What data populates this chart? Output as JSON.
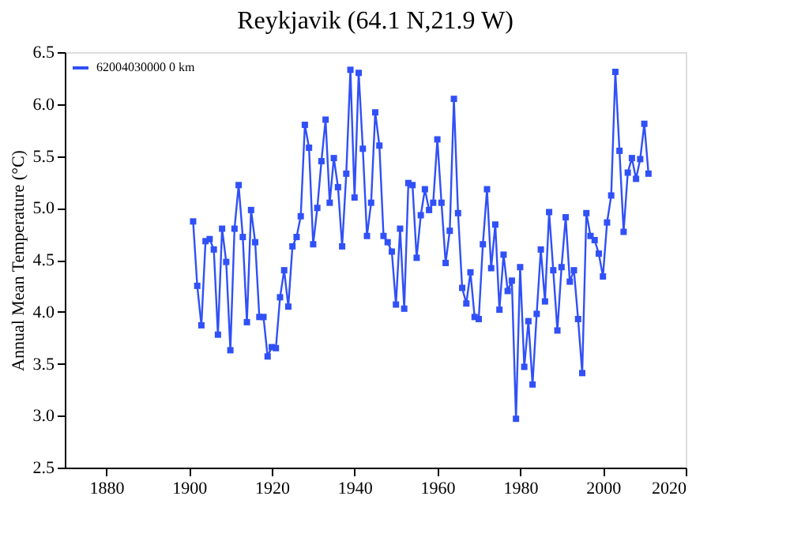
{
  "chart_data": {
    "type": "line",
    "title": "Reykjavik (64.1 N,21.9 W)",
    "ylabel": "Annual Mean Temperature (°C)",
    "xlim": [
      1870,
      2020
    ],
    "xticks": [
      1880,
      1900,
      1920,
      1940,
      1960,
      1980,
      2000,
      2020
    ],
    "ylim": [
      2.5,
      6.5
    ],
    "yticks": [
      2.5,
      {
        "value": 3,
        "label": "3.0"
      },
      3.5,
      {
        "value": 4,
        "label": "4.0"
      },
      4.5,
      {
        "value": 5,
        "label": "5.0"
      },
      5.5,
      {
        "value": 6,
        "label": "6.0"
      },
      6.5
    ],
    "grid": false,
    "legend": "top left",
    "marker": "square",
    "line_style": "solid",
    "x": [
      1901,
      1902,
      1903,
      1904,
      1905,
      1906,
      1907,
      1908,
      1909,
      1910,
      1911,
      1912,
      1913,
      1914,
      1915,
      1916,
      1917,
      1918,
      1919,
      1920,
      1921,
      1922,
      1923,
      1924,
      1925,
      1926,
      1927,
      1928,
      1929,
      1930,
      1931,
      1932,
      1933,
      1934,
      1935,
      1936,
      1937,
      1938,
      1939,
      1940,
      1941,
      1942,
      1943,
      1944,
      1945,
      1946,
      1947,
      1948,
      1949,
      1950,
      1951,
      1952,
      1953,
      1954,
      1955,
      1956,
      1957,
      1958,
      1959,
      1960,
      1961,
      1962,
      1963,
      1964,
      1965,
      1966,
      1967,
      1968,
      1969,
      1970,
      1971,
      1972,
      1973,
      1974,
      1975,
      1976,
      1977,
      1978,
      1979,
      1980,
      1981,
      1982,
      1983,
      1984,
      1985,
      1986,
      1987,
      1988,
      1989,
      1990,
      1991,
      1992,
      1993,
      1994,
      1995,
      1996,
      1997,
      1998,
      1999,
      2000,
      2001,
      2002,
      2003,
      2004,
      2005,
      2006,
      2007,
      2008,
      2009,
      2010,
      2011
    ],
    "series": [
      {
        "name": "62004030000 0 km",
        "color": "#3050f8",
        "values": [
          4.87,
          4.25,
          3.87,
          4.68,
          4.7,
          4.6,
          3.78,
          4.8,
          4.48,
          3.63,
          4.8,
          5.22,
          4.72,
          3.9,
          4.98,
          4.67,
          3.95,
          3.95,
          3.57,
          3.66,
          3.65,
          4.14,
          4.4,
          4.05,
          4.63,
          4.72,
          4.92,
          5.8,
          5.58,
          4.65,
          5.0,
          5.45,
          5.85,
          5.05,
          5.48,
          5.2,
          4.63,
          5.33,
          6.33,
          5.1,
          6.3,
          5.57,
          4.73,
          5.05,
          5.92,
          5.6,
          4.73,
          4.67,
          4.58,
          4.07,
          4.8,
          4.03,
          5.24,
          5.22,
          4.52,
          4.93,
          5.18,
          4.98,
          5.05,
          5.66,
          5.05,
          4.47,
          4.78,
          6.05,
          4.95,
          4.23,
          4.08,
          4.38,
          3.95,
          3.93,
          4.65,
          5.18,
          4.42,
          4.84,
          4.02,
          4.55,
          4.2,
          4.3,
          2.97,
          4.43,
          3.47,
          3.91,
          3.3,
          3.98,
          4.6,
          4.1,
          4.96,
          4.4,
          3.82,
          4.43,
          4.91,
          4.29,
          4.4,
          3.93,
          3.41,
          4.95,
          4.73,
          4.69,
          4.56,
          4.34,
          4.86,
          5.12,
          6.31,
          5.55,
          4.77,
          5.34,
          5.48,
          5.28,
          5.47,
          5.81,
          5.33
        ]
      }
    ]
  }
}
